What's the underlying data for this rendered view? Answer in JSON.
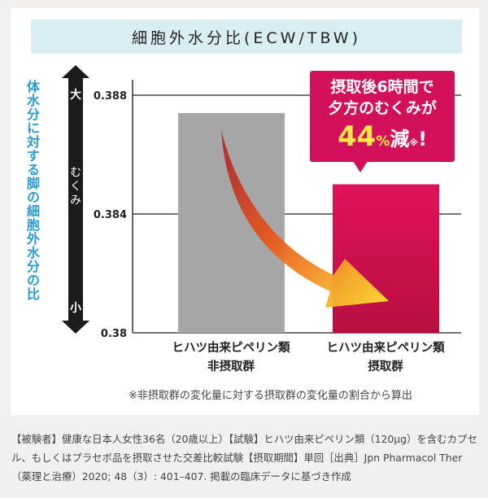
{
  "header": {
    "title": "細胞外水分比(ECW/TBW)"
  },
  "side_label": "体水分に対する脚の細胞外水分の比",
  "scale": {
    "top": "大",
    "middle": "むくみ",
    "bottom": "小"
  },
  "callout": {
    "line1": "摂取後6時間で",
    "line2": "夕方のむくみが",
    "value": "44",
    "percent": "%",
    "verb": "減",
    "mark": "※",
    "excl": "!"
  },
  "note": "※非摂取群の変化量に対する摂取群の変化量の割合から算出",
  "footnote": "【被験者】健康な日本人女性36名（20歳以上）【試験】ヒハツ由来ピペリン類（120μg）を含むカプセル、もしくはプラセボ品を摂取させた交差比較試験【摂取期間】単回［出典］Jpn Pharmacol Ther（薬理と治療）2020; 48（3）: 401–407. 掲載の臨床データに基づき作成",
  "colors": {
    "bar_control": "#a6a6a6",
    "bar_treated": "#d3114e",
    "callout": "#d3115a",
    "side_label": "#2a9bcf",
    "header_bg": "#d9eef3"
  },
  "chart_data": {
    "type": "bar",
    "title": "細胞外水分比(ECW/TBW)",
    "categories": [
      "ヒハツ由来ピペリン類\n非摂取群",
      "ヒハツ由来ピペリン類\n摂取群"
    ],
    "values": [
      0.3874,
      0.385
    ],
    "ylim": [
      0.38,
      0.388
    ],
    "yticks": [
      "0.388",
      "0.384",
      "0.38"
    ],
    "ytick_values": [
      0.388,
      0.384,
      0.38
    ],
    "grid": true
  }
}
